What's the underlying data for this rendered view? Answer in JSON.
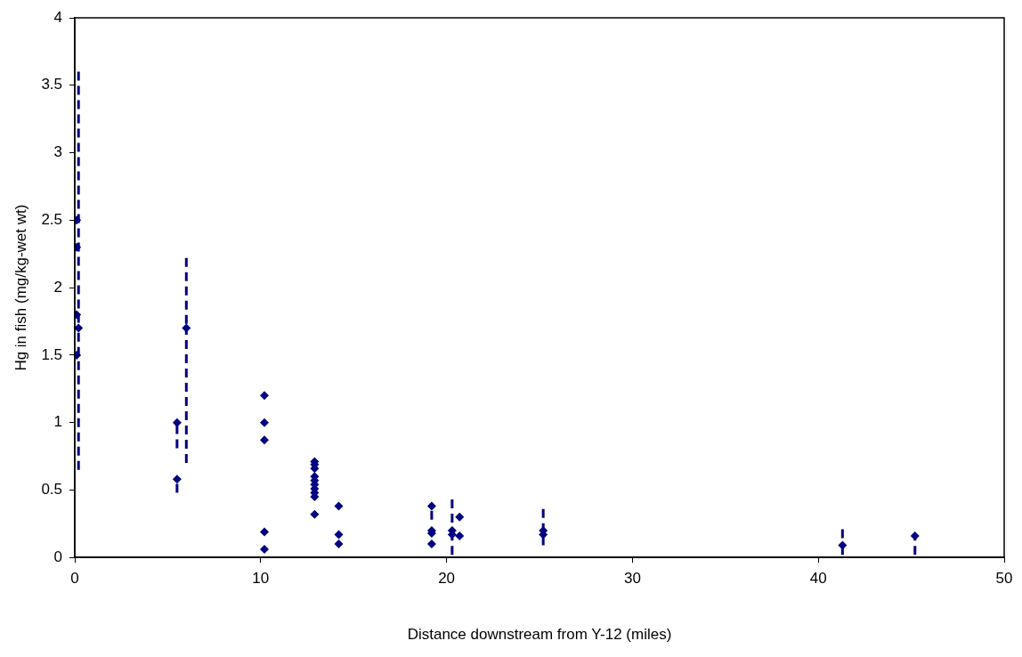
{
  "chart_data": {
    "type": "scatter",
    "xlabel": "Distance downstream from Y-12 (miles)",
    "ylabel": "Hg in fish (mg/kg-wet wt)",
    "xlim": [
      0,
      50
    ],
    "xticks": [
      0,
      10,
      20,
      30,
      40,
      50
    ],
    "ylim": [
      0,
      4
    ],
    "yticks": [
      0,
      0.5,
      1,
      1.5,
      2,
      2.5,
      3,
      3.5,
      4
    ],
    "grid": false,
    "legend": false,
    "marker": "diamond",
    "series": [
      {
        "color": "#000080",
        "x": [
          0.1,
          0.1,
          0.1,
          0.2,
          0.1,
          5.5,
          5.5,
          6.0,
          10.2,
          10.2,
          10.2,
          10.2,
          10.2,
          12.9,
          12.9,
          12.9,
          12.9,
          12.9,
          12.9,
          12.9,
          12.9,
          12.9,
          12.9,
          14.2,
          14.2,
          14.2,
          19.2,
          19.2,
          19.2,
          19.2,
          20.3,
          20.3,
          20.7,
          20.7,
          25.2,
          25.2,
          41.3,
          45.2
        ],
        "values": [
          2.5,
          2.3,
          1.8,
          1.7,
          1.5,
          1.0,
          0.58,
          1.7,
          1.2,
          1.0,
          0.87,
          0.19,
          0.06,
          0.71,
          0.69,
          0.66,
          0.6,
          0.57,
          0.54,
          0.51,
          0.48,
          0.45,
          0.32,
          0.38,
          0.17,
          0.1,
          0.38,
          0.2,
          0.18,
          0.1,
          0.2,
          0.17,
          0.3,
          0.16,
          0.2,
          0.17,
          0.09,
          0.16
        ],
        "errors": [
          null,
          null,
          null,
          [
            0.65,
            3.6
          ],
          null,
          [
            0.81,
            1.0
          ],
          [
            0.48,
            0.58
          ],
          [
            0.7,
            2.22
          ],
          null,
          null,
          null,
          null,
          null,
          null,
          null,
          null,
          null,
          null,
          null,
          null,
          null,
          null,
          null,
          null,
          null,
          null,
          [
            0.28,
            0.38
          ],
          null,
          null,
          null,
          null,
          [
            0.02,
            0.43
          ],
          null,
          null,
          [
            0.09,
            0.36
          ],
          null,
          [
            0.02,
            0.21
          ],
          [
            0.02,
            0.16
          ]
        ]
      }
    ]
  }
}
